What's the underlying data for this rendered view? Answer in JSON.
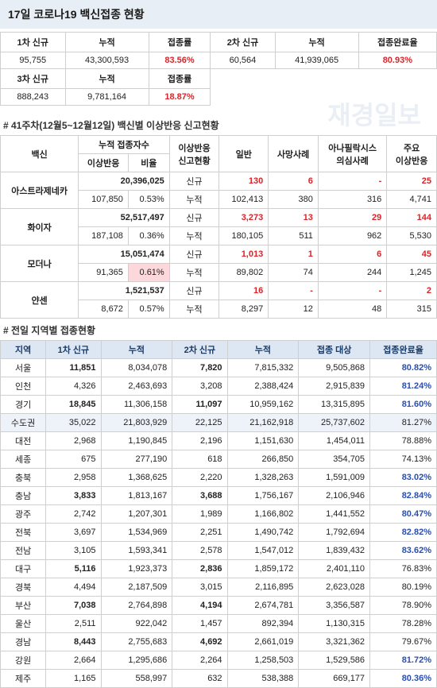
{
  "title": "17일  코로나19 백신접종 현황",
  "watermark": "재경일보",
  "colors": {
    "title_bg": "#e8eef5",
    "border": "#cfcfcf",
    "red": "#d9252a",
    "region_header_bg": "#dde7f3",
    "region_header_fg": "#1a3a66",
    "shade_bg": "#eef3fa",
    "highlight_bg": "#fcd7dc",
    "accent_blue": "#2a4fb0",
    "watermark": "#e9eff5"
  },
  "top": {
    "h_1st_new": "1차 신규",
    "h_cum": "누적",
    "h_rate": "접종률",
    "h_2nd_new": "2차 신규",
    "h_done_rate": "접종완료율",
    "h_3rd_new": "3차 신규",
    "v_1st_new": "95,755",
    "v_1st_cum": "43,300,593",
    "v_1st_rate": "83.56%",
    "v_2nd_new": "60,564",
    "v_2nd_cum": "41,939,065",
    "v_done_rate": "80.93%",
    "v_3rd_new": "888,243",
    "v_3rd_cum": "9,781,164",
    "v_3rd_rate": "18.87%"
  },
  "vax_section_title": "# 41주차(12월5~12월12일) 백신별 이상반응 신고현황",
  "vax_headers": {
    "vaccine": "백신",
    "cum_people": "누적 접종자수",
    "adverse_cnt": "이상반응",
    "ratio": "비율",
    "adverse_status": "이상반응\n신고현황",
    "general": "일반",
    "death": "사망사례",
    "anaphylaxis": "아나필락시스\n의심사례",
    "major": "주요\n이상반응",
    "new": "신규",
    "cum": "누적"
  },
  "vaccines": [
    {
      "name": "아스트라제네카",
      "cum_people": "20,396,025",
      "adverse_cnt": "107,850",
      "ratio": "0.53%",
      "ratio_hl": false,
      "new": {
        "general": "130",
        "death": "6",
        "ana": "-",
        "major": "25"
      },
      "cum": {
        "general": "102,413",
        "death": "380",
        "ana": "316",
        "major": "4,741"
      }
    },
    {
      "name": "화이자",
      "cum_people": "52,517,497",
      "adverse_cnt": "187,108",
      "ratio": "0.36%",
      "ratio_hl": false,
      "new": {
        "general": "3,273",
        "death": "13",
        "ana": "29",
        "major": "144"
      },
      "cum": {
        "general": "180,105",
        "death": "511",
        "ana": "962",
        "major": "5,530"
      }
    },
    {
      "name": "모더나",
      "cum_people": "15,051,474",
      "adverse_cnt": "91,365",
      "ratio": "0.61%",
      "ratio_hl": true,
      "new": {
        "general": "1,013",
        "death": "1",
        "ana": "6",
        "major": "45"
      },
      "cum": {
        "general": "89,802",
        "death": "74",
        "ana": "244",
        "major": "1,245"
      }
    },
    {
      "name": "얀센",
      "cum_people": "1,521,537",
      "adverse_cnt": "8,672",
      "ratio": "0.57%",
      "ratio_hl": false,
      "new": {
        "general": "16",
        "death": "-",
        "ana": "-",
        "major": "2"
      },
      "cum": {
        "general": "8,297",
        "death": "12",
        "ana": "48",
        "major": "315"
      }
    }
  ],
  "region_section_title": "# 전일 지역별 접종현황",
  "region_headers": {
    "region": "지역",
    "first_new": "1차 신규",
    "cum": "누적",
    "second_new": "2차 신규",
    "cum2": "누적",
    "target": "접종 대상",
    "done_rate": "접종완료율"
  },
  "regions": [
    {
      "region": "서울",
      "first_new": "11,851",
      "cum": "8,034,078",
      "second_new": "7,820",
      "cum2": "7,815,332",
      "target": "9,505,868",
      "done_rate": "80.82%",
      "bold": true,
      "acc": true,
      "shade": false
    },
    {
      "region": "인천",
      "first_new": "4,326",
      "cum": "2,463,693",
      "second_new": "3,208",
      "cum2": "2,388,424",
      "target": "2,915,839",
      "done_rate": "81.24%",
      "bold": false,
      "acc": true,
      "shade": false
    },
    {
      "region": "경기",
      "first_new": "18,845",
      "cum": "11,306,158",
      "second_new": "11,097",
      "cum2": "10,959,162",
      "target": "13,315,895",
      "done_rate": "81.60%",
      "bold": true,
      "acc": true,
      "shade": false
    },
    {
      "region": "수도권",
      "first_new": "35,022",
      "cum": "21,803,929",
      "second_new": "22,125",
      "cum2": "21,162,918",
      "target": "25,737,602",
      "done_rate": "81.27%",
      "bold": false,
      "acc": false,
      "shade": true
    },
    {
      "region": "대전",
      "first_new": "2,968",
      "cum": "1,190,845",
      "second_new": "2,196",
      "cum2": "1,151,630",
      "target": "1,454,011",
      "done_rate": "78.88%",
      "bold": false,
      "acc": false,
      "shade": false
    },
    {
      "region": "세종",
      "first_new": "675",
      "cum": "277,190",
      "second_new": "618",
      "cum2": "266,850",
      "target": "354,705",
      "done_rate": "74.13%",
      "bold": false,
      "acc": false,
      "shade": false
    },
    {
      "region": "충북",
      "first_new": "2,958",
      "cum": "1,368,625",
      "second_new": "2,220",
      "cum2": "1,328,263",
      "target": "1,591,009",
      "done_rate": "83.02%",
      "bold": false,
      "acc": true,
      "shade": false
    },
    {
      "region": "충남",
      "first_new": "3,833",
      "cum": "1,813,167",
      "second_new": "3,688",
      "cum2": "1,756,167",
      "target": "2,106,946",
      "done_rate": "82.84%",
      "bold": true,
      "acc": true,
      "shade": false
    },
    {
      "region": "광주",
      "first_new": "2,742",
      "cum": "1,207,301",
      "second_new": "1,989",
      "cum2": "1,166,802",
      "target": "1,441,552",
      "done_rate": "80.47%",
      "bold": false,
      "acc": true,
      "shade": false
    },
    {
      "region": "전북",
      "first_new": "3,697",
      "cum": "1,534,969",
      "second_new": "2,251",
      "cum2": "1,490,742",
      "target": "1,792,694",
      "done_rate": "82.82%",
      "bold": false,
      "acc": true,
      "shade": false
    },
    {
      "region": "전남",
      "first_new": "3,105",
      "cum": "1,593,341",
      "second_new": "2,578",
      "cum2": "1,547,012",
      "target": "1,839,432",
      "done_rate": "83.62%",
      "bold": false,
      "acc": true,
      "shade": false
    },
    {
      "region": "대구",
      "first_new": "5,116",
      "cum": "1,923,373",
      "second_new": "2,836",
      "cum2": "1,859,172",
      "target": "2,401,110",
      "done_rate": "76.83%",
      "bold": true,
      "acc": false,
      "shade": false
    },
    {
      "region": "경북",
      "first_new": "4,494",
      "cum": "2,187,509",
      "second_new": "3,015",
      "cum2": "2,116,895",
      "target": "2,623,028",
      "done_rate": "80.19%",
      "bold": false,
      "acc": false,
      "shade": false
    },
    {
      "region": "부산",
      "first_new": "7,038",
      "cum": "2,764,898",
      "second_new": "4,194",
      "cum2": "2,674,781",
      "target": "3,356,587",
      "done_rate": "78.90%",
      "bold": true,
      "acc": false,
      "shade": false
    },
    {
      "region": "울산",
      "first_new": "2,511",
      "cum": "922,042",
      "second_new": "1,457",
      "cum2": "892,394",
      "target": "1,130,315",
      "done_rate": "78.28%",
      "bold": false,
      "acc": false,
      "shade": false
    },
    {
      "region": "경남",
      "first_new": "8,443",
      "cum": "2,755,683",
      "second_new": "4,692",
      "cum2": "2,661,019",
      "target": "3,321,362",
      "done_rate": "79.67%",
      "bold": true,
      "acc": false,
      "shade": false
    },
    {
      "region": "강원",
      "first_new": "2,664",
      "cum": "1,295,686",
      "second_new": "2,264",
      "cum2": "1,258,503",
      "target": "1,529,586",
      "done_rate": "81.72%",
      "bold": false,
      "acc": true,
      "shade": false
    },
    {
      "region": "제주",
      "first_new": "1,165",
      "cum": "558,997",
      "second_new": "632",
      "cum2": "538,388",
      "target": "669,177",
      "done_rate": "80.36%",
      "bold": false,
      "acc": true,
      "shade": false
    }
  ]
}
